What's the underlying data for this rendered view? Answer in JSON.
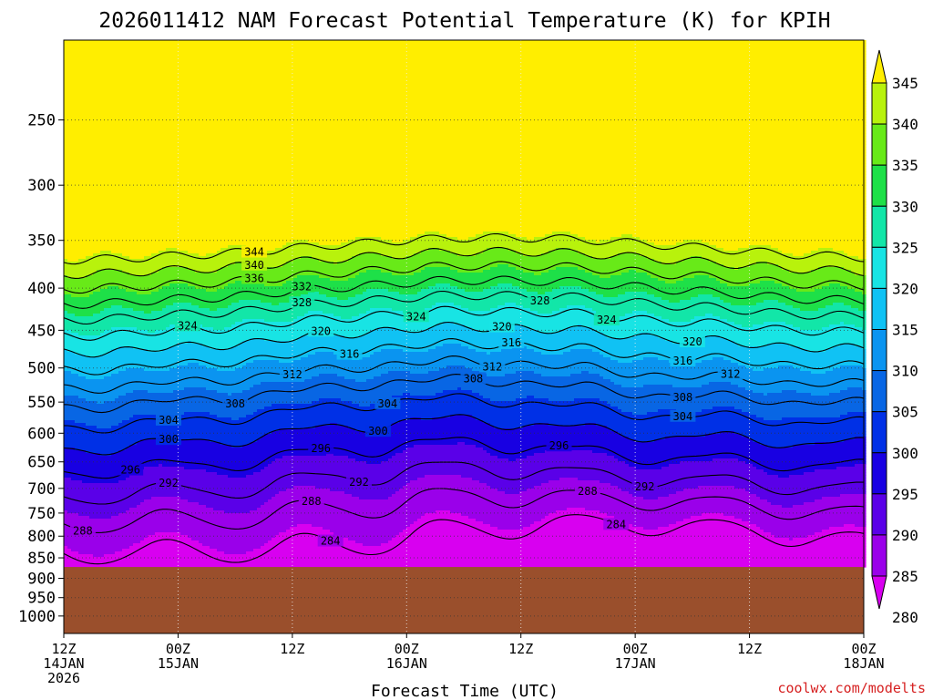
{
  "chart_data": {
    "type": "heatmap",
    "title": "2026011412 NAM Forecast Potential Temperature (K) for KPIH",
    "xlabel": "Forecast Time (UTC)",
    "ylabel": "",
    "credit": "coolwx.com/modelts",
    "x_ticks": [
      {
        "hour": 0,
        "line1": "12Z",
        "line2": "14JAN",
        "line3": "2026"
      },
      {
        "hour": 12,
        "line1": "00Z",
        "line2": "15JAN",
        "line3": ""
      },
      {
        "hour": 24,
        "line1": "12Z",
        "line2": "",
        "line3": ""
      },
      {
        "hour": 36,
        "line1": "00Z",
        "line2": "16JAN",
        "line3": ""
      },
      {
        "hour": 48,
        "line1": "12Z",
        "line2": "",
        "line3": ""
      },
      {
        "hour": 60,
        "line1": "00Z",
        "line2": "17JAN",
        "line3": ""
      },
      {
        "hour": 72,
        "line1": "12Z",
        "line2": "",
        "line3": ""
      },
      {
        "hour": 84,
        "line1": "00Z",
        "line2": "18JAN",
        "line3": ""
      }
    ],
    "x_range_hours": [
      0,
      84
    ],
    "y_axis": "pressure (hPa), log scale, inverted",
    "y_ticks": [
      250,
      300,
      350,
      400,
      450,
      500,
      550,
      600,
      650,
      700,
      750,
      800,
      850,
      900,
      950,
      1000
    ],
    "y_range": [
      1050,
      200
    ],
    "surface_pressure": 872,
    "grid": true,
    "colorbar": {
      "placement": "right",
      "min": 280,
      "max": 345,
      "step": 5,
      "labels": [
        345,
        340,
        335,
        330,
        325,
        320,
        315,
        310,
        305,
        300,
        295,
        290,
        285,
        280
      ],
      "colors": [
        "#ffee00",
        "#b8f20c",
        "#68ea18",
        "#1ee048",
        "#12e6a8",
        "#18e4e4",
        "#10c2f4",
        "#0a94f0",
        "#0866e4",
        "#0030e6",
        "#1800e2",
        "#5a00e8",
        "#9a00ea",
        "#d800f0"
      ]
    },
    "contour_interval": 4,
    "contour_series": [
      {
        "level": 344,
        "label_hours": [
          20
        ]
      },
      {
        "level": 340,
        "label_hours": [
          20
        ]
      },
      {
        "level": 336,
        "label_hours": [
          20
        ]
      },
      {
        "level": 332,
        "label_hours": [
          25
        ]
      },
      {
        "level": 328,
        "label_hours": [
          25,
          50
        ]
      },
      {
        "level": 324,
        "label_hours": [
          13,
          37,
          57
        ]
      },
      {
        "level": 320,
        "label_hours": [
          27,
          46,
          66
        ]
      },
      {
        "level": 316,
        "label_hours": [
          30,
          47,
          65
        ]
      },
      {
        "level": 312,
        "label_hours": [
          24,
          45,
          70
        ]
      },
      {
        "level": 308,
        "label_hours": [
          18,
          43,
          65
        ]
      },
      {
        "level": 304,
        "label_hours": [
          11,
          34,
          65
        ]
      },
      {
        "level": 300,
        "label_hours": [
          11,
          33
        ]
      },
      {
        "level": 296,
        "label_hours": [
          7,
          27,
          52
        ]
      },
      {
        "level": 292,
        "label_hours": [
          11,
          31,
          61
        ]
      },
      {
        "level": 288,
        "label_hours": [
          2,
          26,
          55
        ]
      },
      {
        "level": 284,
        "label_hours": [
          28,
          58
        ]
      }
    ]
  }
}
